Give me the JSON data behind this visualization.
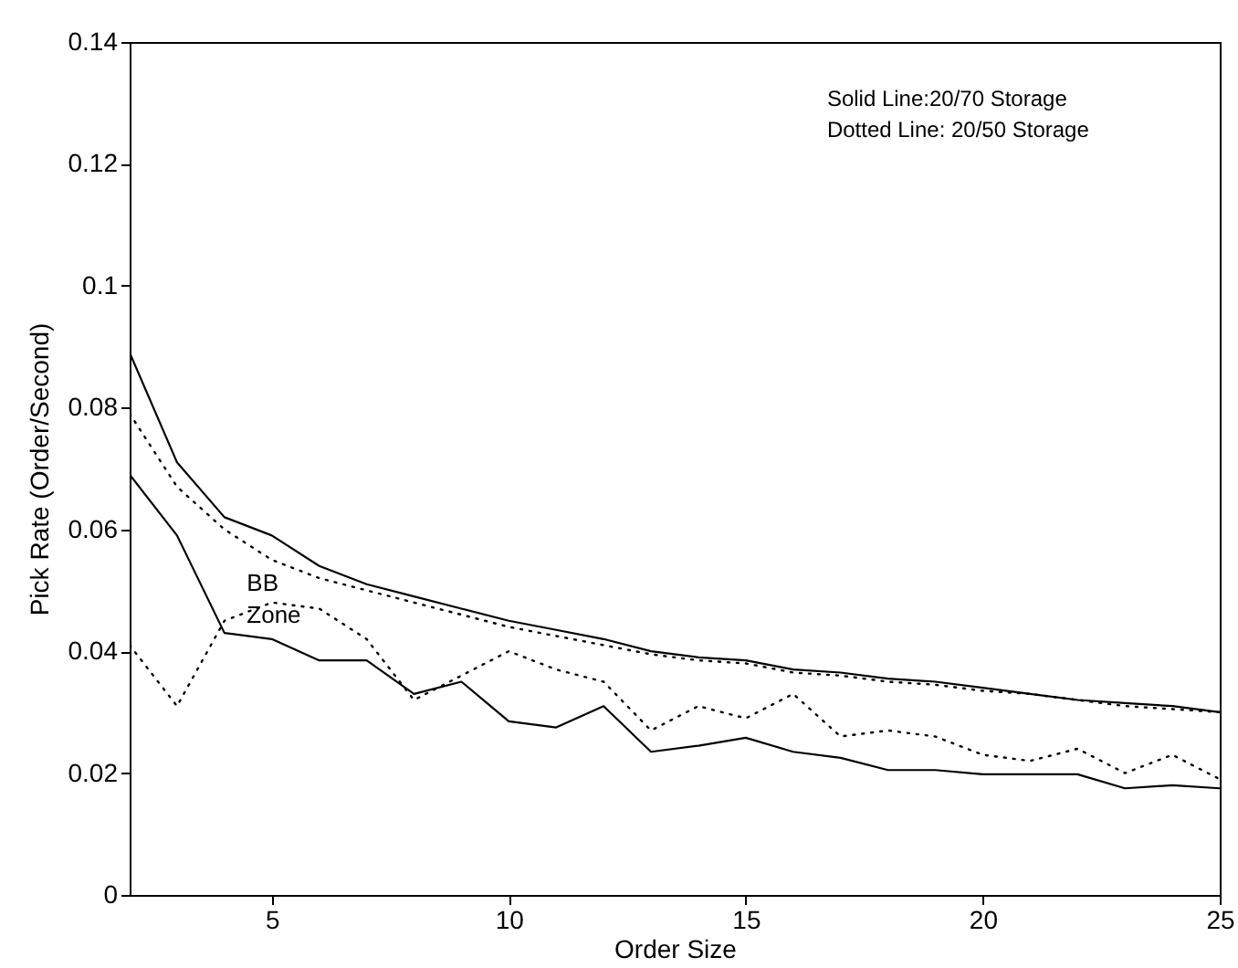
{
  "chart_data": {
    "type": "line",
    "xlabel": "Order Size",
    "ylabel": "Pick Rate (Order/Second)",
    "xlim": [
      2,
      25
    ],
    "xticks": [
      5,
      10,
      15,
      20,
      25
    ],
    "ylim": [
      0,
      0.14
    ],
    "yticks": [
      0,
      0.02,
      0.04,
      0.06,
      0.08,
      0.1,
      0.12,
      0.14
    ],
    "grid": false,
    "x": [
      2,
      3,
      4,
      5,
      6,
      7,
      8,
      9,
      10,
      11,
      12,
      13,
      14,
      15,
      16,
      17,
      18,
      19,
      20,
      21,
      22,
      23,
      24,
      25
    ],
    "series": [
      {
        "color": "#000000",
        "line_style": "solid",
        "values": [
          0.089,
          0.071,
          0.062,
          0.059,
          0.054,
          0.051,
          0.049,
          0.047,
          0.045,
          0.0435,
          0.042,
          0.04,
          0.039,
          0.0385,
          0.037,
          0.0365,
          0.0355,
          0.035,
          0.034,
          0.033,
          0.032,
          0.0315,
          0.031,
          0.03
        ]
      },
      {
        "color": "#000000",
        "line_style": "dotted",
        "values": [
          0.079,
          0.067,
          0.06,
          0.055,
          0.052,
          0.05,
          0.048,
          0.046,
          0.044,
          0.0425,
          0.041,
          0.0395,
          0.0385,
          0.038,
          0.0365,
          0.036,
          0.035,
          0.0345,
          0.0335,
          0.033,
          0.032,
          0.031,
          0.0305,
          0.03
        ]
      },
      {
        "color": "#000000",
        "line_style": "solid",
        "values": [
          0.069,
          0.059,
          0.043,
          0.042,
          0.0385,
          0.0385,
          0.033,
          0.035,
          0.0285,
          0.0275,
          0.031,
          0.0235,
          0.0245,
          0.0258,
          0.0235,
          0.0225,
          0.0205,
          0.0205,
          0.0198,
          0.0198,
          0.0198,
          0.0175,
          0.018,
          0.0175
        ]
      },
      {
        "color": "#000000",
        "line_style": "dotted",
        "values": [
          0.041,
          0.031,
          0.045,
          0.048,
          0.047,
          0.042,
          0.032,
          0.036,
          0.04,
          0.037,
          0.035,
          0.027,
          0.031,
          0.029,
          0.033,
          0.026,
          0.027,
          0.026,
          0.023,
          0.022,
          0.024,
          0.02,
          0.023,
          0.019
        ]
      }
    ],
    "annotations": [
      "BB",
      "Zone",
      "Solid Line:20/70 Storage",
      "Dotted Line: 20/50 Storage"
    ]
  }
}
